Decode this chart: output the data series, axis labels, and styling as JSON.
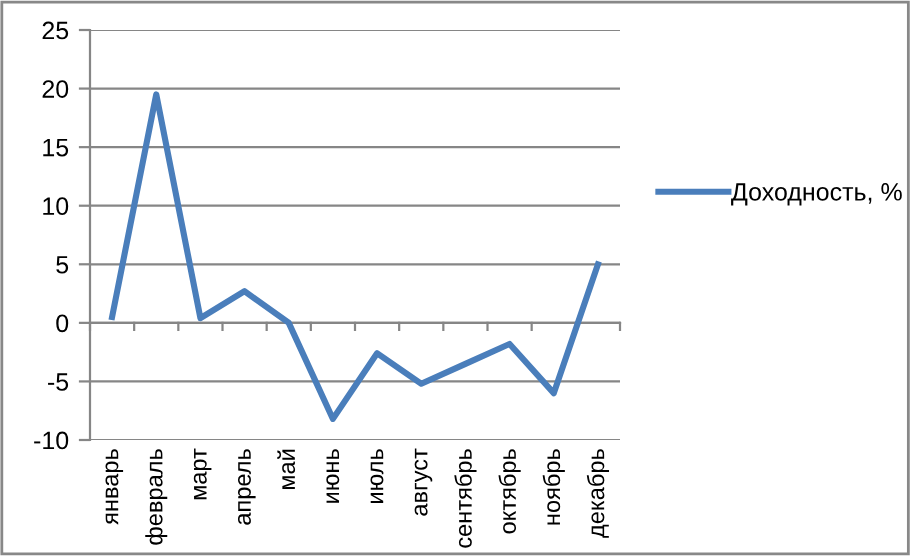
{
  "chart_data": {
    "type": "line",
    "categories": [
      "январь",
      "февраль",
      "март",
      "апрель",
      "май",
      "июнь",
      "июль",
      "август",
      "сентябрь",
      "октябрь",
      "ноябрь",
      "декабрь"
    ],
    "series": [
      {
        "name": "Доходность, %",
        "color": "#4a7ebb",
        "values": [
          0.5,
          19.5,
          0.4,
          2.7,
          0,
          -8.2,
          -2.6,
          -5.2,
          -3.5,
          -1.8,
          -6,
          5
        ]
      }
    ],
    "ylim": [
      -10,
      25
    ],
    "yticks": [
      -10,
      -5,
      0,
      5,
      10,
      15,
      20,
      25
    ],
    "grid": "y",
    "legend": "right",
    "marker": "none",
    "line_style": "solid"
  }
}
